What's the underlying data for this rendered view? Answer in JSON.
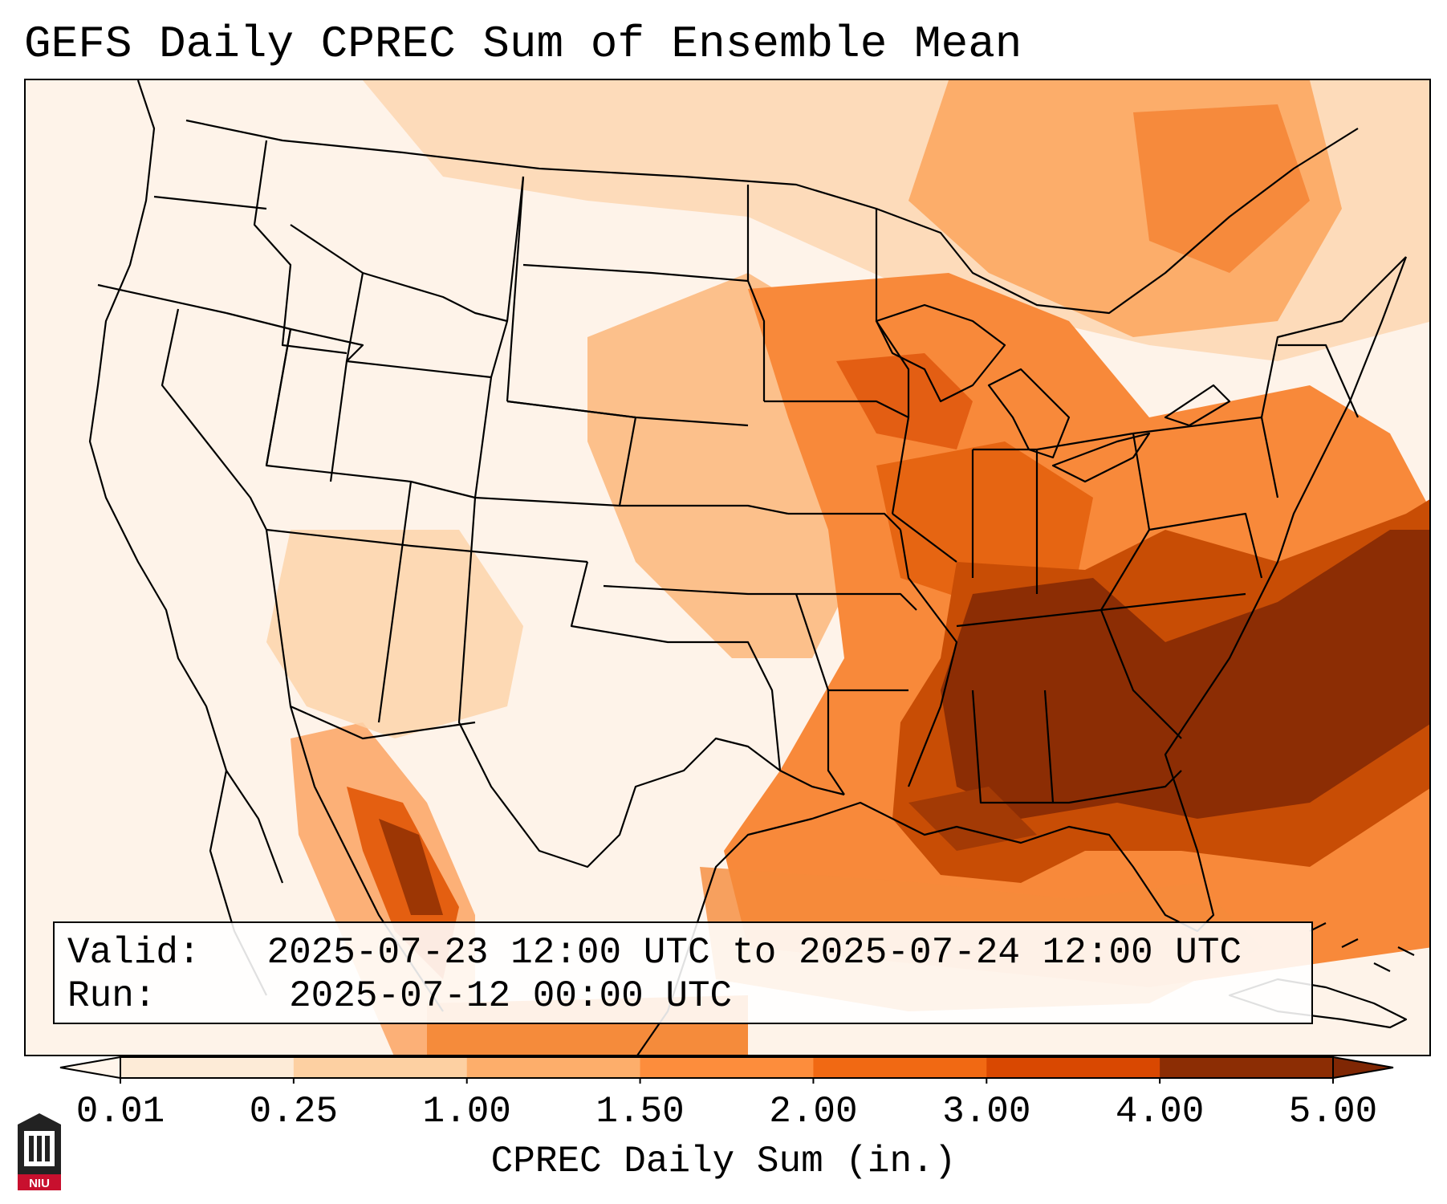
{
  "title": "GEFS Daily CPREC Sum of Ensemble Mean",
  "info_box": {
    "valid_label": "Valid:",
    "valid_value": "2025-07-23 12:00 UTC to 2025-07-24 12:00 UTC",
    "run_label": "Run:",
    "run_value": "2025-07-12 00:00 UTC"
  },
  "colorbar": {
    "label": "CPREC Daily Sum (in.)",
    "ticks": [
      "0.01",
      "0.25",
      "1.00",
      "1.50",
      "2.00",
      "3.00",
      "4.00",
      "5.00"
    ],
    "colors": [
      "#fdebd7",
      "#fdd0a2",
      "#fdae6b",
      "#fd8d3c",
      "#f16913",
      "#d94801",
      "#8c2d04"
    ],
    "under_color": "#fff5eb",
    "over_color": "#7f2704"
  },
  "logo": {
    "text": "NIU",
    "icon": "niu-logo-icon",
    "color": "#c8102e"
  },
  "map": {
    "projection": "lambert-conformal-conus",
    "features": [
      "state-borders",
      "country-borders",
      "coastlines",
      "great-lakes"
    ]
  }
}
